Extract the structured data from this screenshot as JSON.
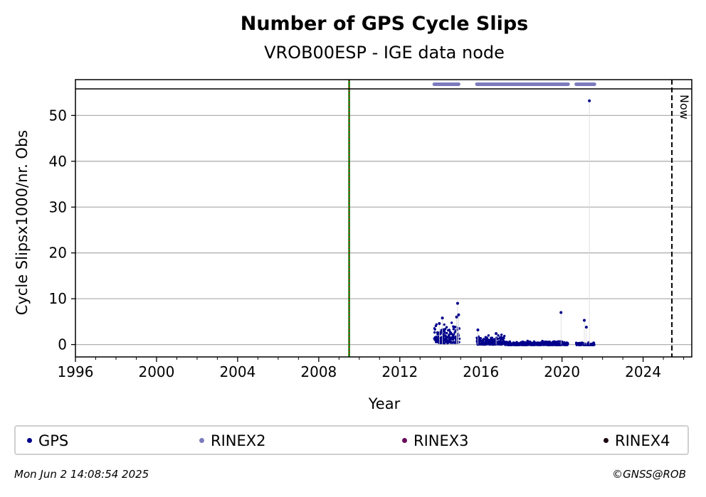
{
  "chart_data": {
    "type": "scatter",
    "title": "Number of GPS Cycle Slips",
    "subtitle": "VROB00ESP - IGE data node",
    "xlabel": "Year",
    "ylabel": "Cycle Slipsx1000/nr. Obs",
    "xlim": [
      1996.0,
      2026.4
    ],
    "ylim": [
      -2.7,
      55.8
    ],
    "x_ticks": [
      1996,
      2000,
      2004,
      2008,
      2012,
      2016,
      2020,
      2024
    ],
    "y_ticks": [
      0,
      10,
      20,
      30,
      40,
      50
    ],
    "grid": "horizontal",
    "markers": [
      {
        "label": "",
        "x": 2009.5,
        "style": "solid",
        "colors": [
          "#008000",
          "#cc0000"
        ]
      },
      {
        "label": "Now",
        "x": 2025.42,
        "style": "dashed",
        "colors": [
          "#000000"
        ]
      }
    ],
    "rinex2_availability": [
      [
        2013.7,
        2014.9
      ],
      [
        2015.8,
        2020.3
      ],
      [
        2020.7,
        2021.6
      ]
    ],
    "series": [
      {
        "name": "GPS",
        "color": "#00008b",
        "segments": [
          {
            "x0": 2013.7,
            "x1": 2014.95,
            "base": 0.3,
            "spread": 3.2
          },
          {
            "x0": 2015.8,
            "x1": 2017.2,
            "base": 0.0,
            "spread": 1.4
          },
          {
            "x0": 2017.2,
            "x1": 2020.3,
            "base": -0.1,
            "spread": 0.6
          },
          {
            "x0": 2020.7,
            "x1": 2021.6,
            "base": -0.1,
            "spread": 0.4
          }
        ],
        "outliers": [
          {
            "x": 2014.85,
            "y": 9.0
          },
          {
            "x": 2014.9,
            "y": 6.5
          },
          {
            "x": 2014.1,
            "y": 5.8
          },
          {
            "x": 2014.8,
            "y": 6.0
          },
          {
            "x": 2013.95,
            "y": 4.6
          },
          {
            "x": 2015.85,
            "y": 3.2
          },
          {
            "x": 2016.75,
            "y": 2.4
          },
          {
            "x": 2019.95,
            "y": 7.0
          },
          {
            "x": 2021.1,
            "y": 5.3
          },
          {
            "x": 2021.2,
            "y": 3.8
          },
          {
            "x": 2021.35,
            "y": 53.2
          }
        ]
      }
    ]
  },
  "legend": [
    {
      "label": "GPS",
      "color": "#00008b"
    },
    {
      "label": "RINEX2",
      "color": "#7b7bbd"
    },
    {
      "label": "RINEX3",
      "color": "#6a0a5a"
    },
    {
      "label": "RINEX4",
      "color": "#1a0010"
    }
  ],
  "footer": {
    "timestamp": "Mon Jun  2 14:08:54 2025",
    "copyright": "©GNSS@ROB"
  }
}
